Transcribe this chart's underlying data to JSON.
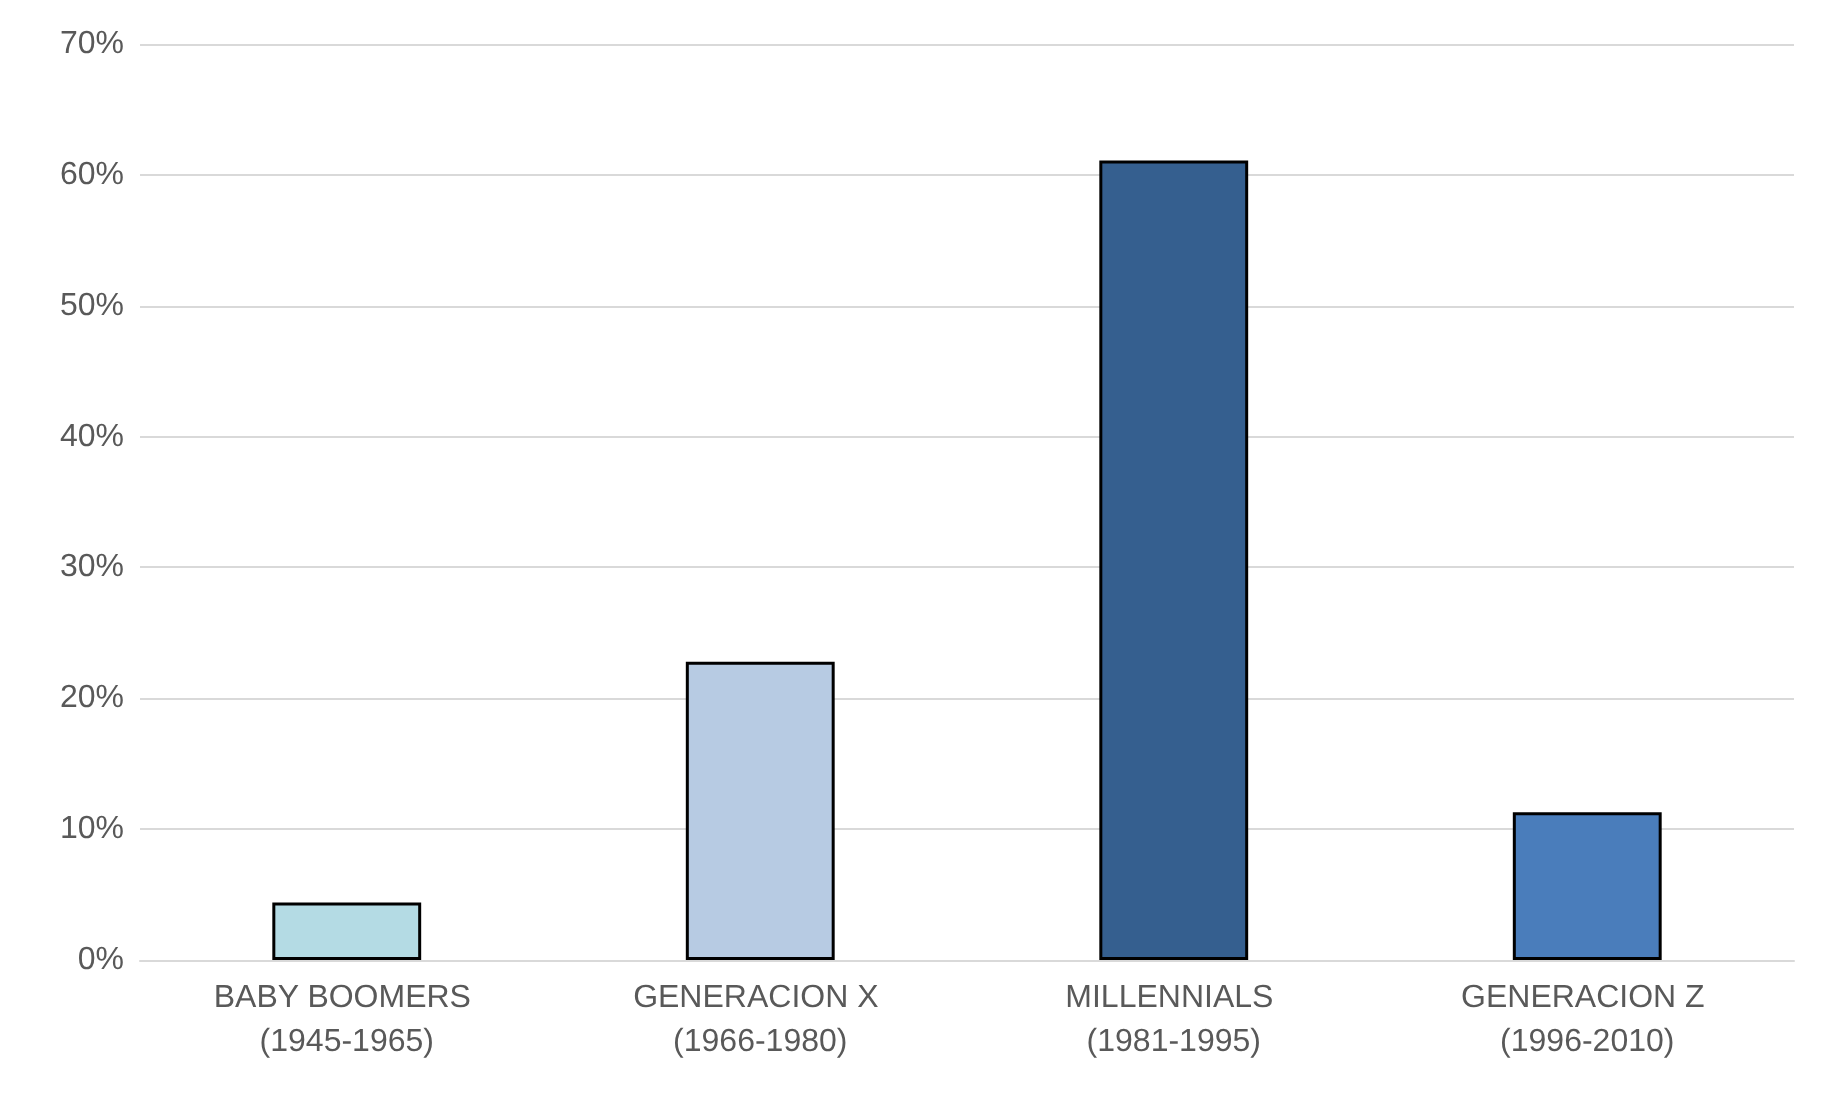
{
  "chart_data": {
    "type": "bar",
    "categories": [
      "BABY BOOMERS (1945-1965)",
      "GENERACION X (1966-1980)",
      "MILLENNIALS (1981-1995)",
      "GENERACION Z (1996-2010)"
    ],
    "values": [
      4.4,
      22.8,
      61.1,
      11.3
    ],
    "colors": [
      "#b4dbe4",
      "#b7cbe3",
      "#355f8f",
      "#4a7dbb"
    ],
    "ylim": [
      0,
      70
    ],
    "yticks": [
      {
        "value": 0,
        "label": "0%"
      },
      {
        "value": 10,
        "label": "10%"
      },
      {
        "value": 20,
        "label": "20%"
      },
      {
        "value": 30,
        "label": "30%"
      },
      {
        "value": 40,
        "label": "40%"
      },
      {
        "value": 50,
        "label": "50%"
      },
      {
        "value": 60,
        "label": "60%"
      },
      {
        "value": 70,
        "label": "70%"
      }
    ],
    "grid": "y"
  }
}
